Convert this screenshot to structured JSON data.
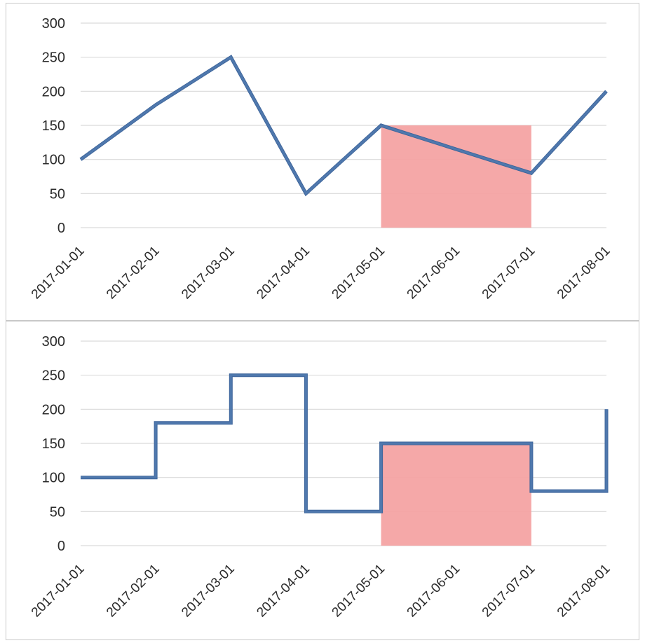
{
  "chart_data": [
    {
      "type": "line",
      "x": [
        "2017-01-01",
        "2017-02-01",
        "2017-03-01",
        "2017-04-01",
        "2017-05-01",
        "2017-06-01",
        "2017-07-01",
        "2017-08-01"
      ],
      "series": [
        {
          "values": [
            100,
            180,
            250,
            50,
            150,
            115,
            80,
            200
          ],
          "color": "#4f78ad"
        }
      ],
      "highlight": {
        "x_start": "2017-05-01",
        "x_end": "2017-07-01",
        "y_max": 150,
        "color": "#f4a3a3"
      },
      "ylim": [
        0,
        300
      ],
      "y_ticks": [
        0,
        50,
        100,
        150,
        200,
        250,
        300
      ],
      "grid": true,
      "xlabel": "",
      "ylabel": ""
    },
    {
      "type": "line",
      "step": "post",
      "x": [
        "2017-01-01",
        "2017-02-01",
        "2017-03-01",
        "2017-04-01",
        "2017-05-01",
        "2017-06-01",
        "2017-07-01",
        "2017-08-01"
      ],
      "series": [
        {
          "values": [
            100,
            180,
            250,
            50,
            150,
            150,
            80,
            200
          ],
          "color": "#4f78ad"
        }
      ],
      "highlight": {
        "x_start": "2017-05-01",
        "x_end": "2017-07-01",
        "y_max": 150,
        "color": "#f4a3a3"
      },
      "ylim": [
        0,
        300
      ],
      "y_ticks": [
        0,
        50,
        100,
        150,
        200,
        250,
        300
      ],
      "grid": true,
      "xlabel": "",
      "ylabel": ""
    }
  ]
}
